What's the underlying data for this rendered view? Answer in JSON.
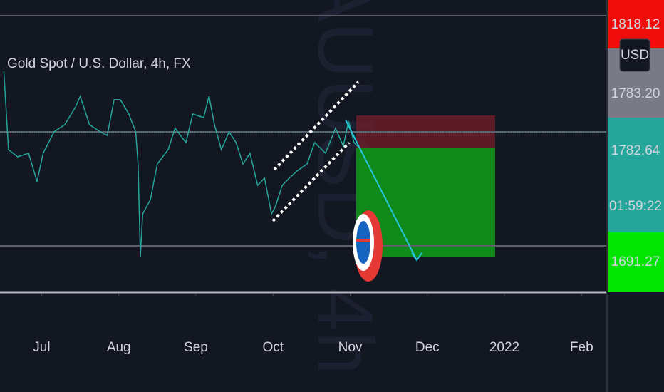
{
  "chart_data": {
    "type": "line",
    "title": "Gold Spot / U.S. Dollar, 4h, FX",
    "watermark": "XAUUSD, 4h",
    "currency": "USD",
    "countdown": "01:59:22",
    "x": [
      6.51,
      6.57,
      6.69,
      6.83,
      6.94,
      7.02,
      7.16,
      7.3,
      7.44,
      7.5,
      7.62,
      7.76,
      7.85,
      7.94,
      8.02,
      8.13,
      8.22,
      8.25,
      8.28,
      8.31,
      8.41,
      8.5,
      8.64,
      8.73,
      8.87,
      8.96,
      9.1,
      9.17,
      9.24,
      9.33,
      9.43,
      9.52,
      9.61,
      9.7,
      9.8,
      9.89,
      9.98,
      10.03,
      10.12,
      10.21,
      10.31,
      10.44,
      10.54,
      10.68,
      10.81,
      10.91,
      10.98,
      11.05,
      11.14
    ],
    "series": [
      {
        "color": "#26a69a",
        "values": [
          1832.0,
          1768.8,
          1763.1,
          1766.0,
          1743.0,
          1766.0,
          1783.2,
          1789.0,
          1803.3,
          1811.9,
          1789.0,
          1783.2,
          1780.3,
          1809.1,
          1809.1,
          1797.6,
          1783.2,
          1757.3,
          1682.6,
          1717.1,
          1728.6,
          1757.3,
          1768.8,
          1786.1,
          1774.6,
          1797.6,
          1794.7,
          1811.9,
          1789.0,
          1768.8,
          1783.2,
          1774.6,
          1757.3,
          1766.0,
          1740.1,
          1745.9,
          1717.1,
          1722.9,
          1740.1,
          1745.9,
          1751.6,
          1757.3,
          1774.6,
          1766.0,
          1786.1,
          1771.7,
          1791.8,
          1774.6,
          1768.8
        ]
      }
    ],
    "price_levels": [
      {
        "value": 1818.12,
        "label": "1818.12",
        "color": "#f20d0d"
      },
      {
        "value": 1783.2,
        "label": "1783.20",
        "color": "#787b86"
      },
      {
        "value": 1782.64,
        "label": "1782.64",
        "color": "#26a69a"
      },
      {
        "value": 1691.27,
        "label": "1691.27",
        "color": "#00e600"
      }
    ],
    "xlim": [
      6.46,
      14.33
    ],
    "ylim": [
      1653.9,
      1889.5
    ],
    "xticks": [
      {
        "value": 7,
        "label": "Jul"
      },
      {
        "value": 8,
        "label": "Aug"
      },
      {
        "value": 9,
        "label": "Sep"
      },
      {
        "value": 10,
        "label": "Oct"
      },
      {
        "value": 11,
        "label": "Nov"
      },
      {
        "value": 12,
        "label": "Dec"
      },
      {
        "value": 13,
        "label": "2022"
      },
      {
        "value": 14,
        "label": "Feb"
      }
    ]
  }
}
